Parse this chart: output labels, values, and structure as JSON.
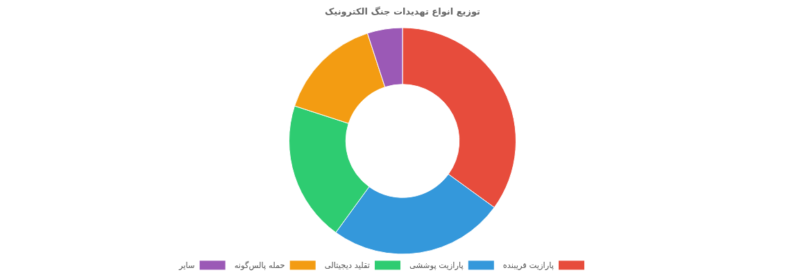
{
  "chart_data": {
    "type": "donut",
    "title": "توزیع انواع تهدیدات جنگ الکترونیک",
    "categories": [
      "پارازیت فریبنده",
      "پارازیت پوششی",
      "تقلید دیجیتالی",
      "حمله پالس‌گونه",
      "سایر"
    ],
    "values": [
      35,
      25,
      20,
      15,
      5
    ],
    "colors": [
      "#e74c3c",
      "#3498db",
      "#2ecc71",
      "#f39c12",
      "#9b59b6"
    ],
    "legend": "bottom"
  }
}
